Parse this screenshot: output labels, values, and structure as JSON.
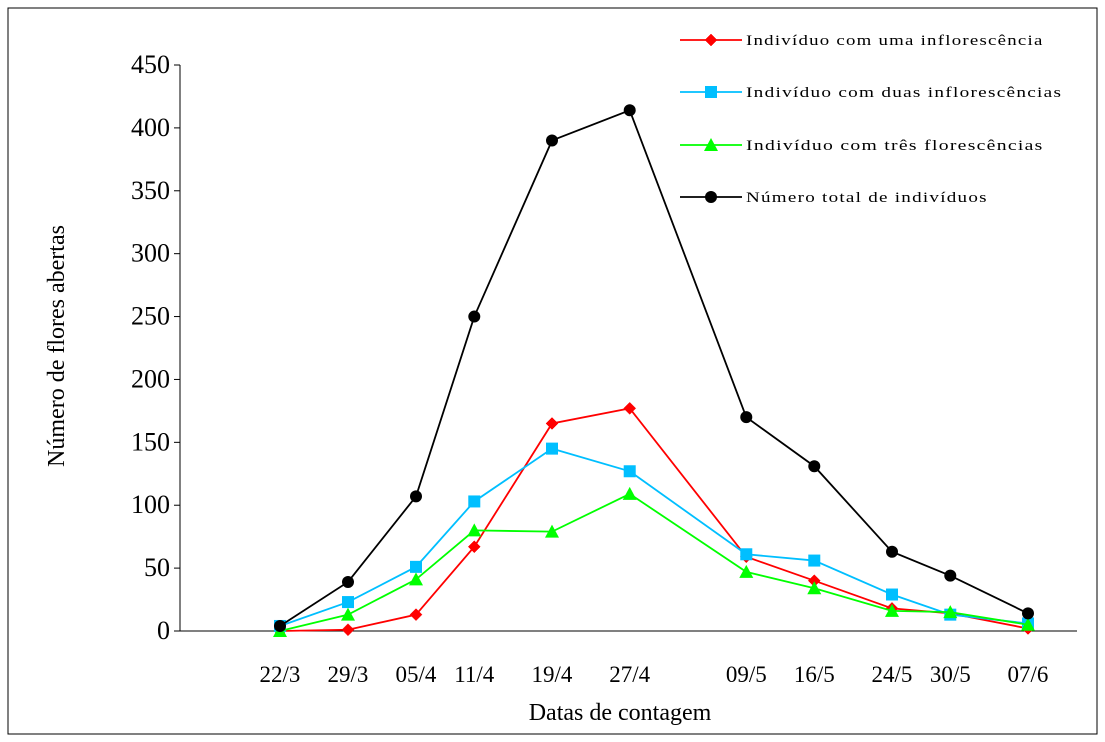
{
  "chart_data": {
    "type": "line",
    "title": "",
    "xlabel": "Datas de contagem",
    "ylabel": "Número de flores abertas",
    "categories": [
      "22/3",
      "29/3",
      "05/4",
      "11/4",
      "19/4",
      "27/4",
      "09/5",
      "16/5",
      "24/5",
      "30/5",
      "07/6"
    ],
    "x": [
      0,
      7,
      14,
      20,
      28,
      36,
      48,
      55,
      63,
      69,
      77
    ],
    "ylim": [
      0,
      450
    ],
    "yticks": [
      0,
      50,
      100,
      150,
      200,
      250,
      300,
      350,
      400,
      450
    ],
    "grid": false,
    "legend_position": "top-right",
    "series": [
      {
        "name": "Indivíduo com uma inflorescência",
        "color": "#ff0000",
        "marker": "diamond",
        "values": [
          0,
          1,
          13,
          67,
          165,
          177,
          59,
          40,
          18,
          14,
          2
        ]
      },
      {
        "name": "Indivíduo com duas inflorescências",
        "color": "#00bfff",
        "marker": "square",
        "values": [
          4,
          23,
          51,
          103,
          145,
          127,
          61,
          56,
          29,
          13,
          6
        ]
      },
      {
        "name": "Indivíduo com três florescências",
        "color": "#00ff00",
        "marker": "triangle",
        "values": [
          0,
          13,
          41,
          80,
          79,
          109,
          47,
          34,
          16,
          15,
          5
        ]
      },
      {
        "name": "Número total de indivíduos",
        "color": "#000000",
        "marker": "circle",
        "values": [
          4,
          39,
          107,
          250,
          390,
          414,
          170,
          131,
          63,
          44,
          14
        ]
      }
    ]
  }
}
